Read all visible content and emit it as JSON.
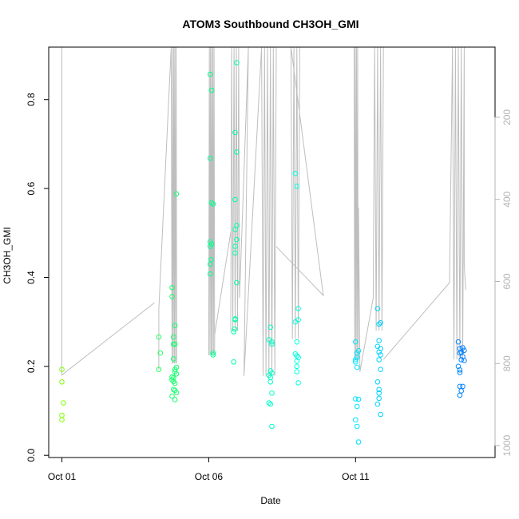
{
  "chart_data": {
    "type": "scatter",
    "title": "ATOM3 Southbound CH3OH_GMI",
    "xlabel": "Date",
    "ylabel": "CH3OH_GMI",
    "x_ticks": [
      {
        "day": 1,
        "label": "Oct 01"
      },
      {
        "day": 6,
        "label": "Oct 06"
      },
      {
        "day": 11,
        "label": "Oct 11"
      }
    ],
    "x_range": [
      0.55,
      15.75
    ],
    "y_ticks": [
      0.0,
      0.2,
      0.4,
      0.6,
      0.8
    ],
    "y_tick_labels": [
      "0.0",
      "0.2",
      "0.4",
      "0.6",
      "0.8"
    ],
    "ylim": [
      -0.005,
      0.918
    ],
    "right_axis": {
      "ticks": [
        200,
        400,
        600,
        800,
        1000
      ],
      "tick_labels": [
        "200",
        "400",
        "600",
        "800",
        "1000"
      ],
      "range_top_to_bottom": [
        29,
        1029
      ],
      "color": "#b3b3b3"
    },
    "grid": false,
    "legend": "none",
    "point_color_gradient": [
      "#80ff00",
      "#00ff80",
      "#00ffff",
      "#0080ff"
    ],
    "series": [
      {
        "points": [
          [
            1.0,
            0.193
          ],
          [
            1.0,
            0.165
          ],
          [
            1.05,
            0.118
          ],
          [
            1.0,
            0.09
          ],
          [
            1.0,
            0.08
          ],
          [
            4.3,
            0.266
          ],
          [
            4.35,
            0.23
          ],
          [
            4.3,
            0.193
          ],
          [
            4.75,
            0.377
          ],
          [
            4.75,
            0.357
          ],
          [
            4.85,
            0.292
          ],
          [
            4.8,
            0.266
          ],
          [
            4.8,
            0.25
          ],
          [
            4.85,
            0.25
          ],
          [
            4.8,
            0.217
          ],
          [
            4.9,
            0.198
          ],
          [
            4.85,
            0.193
          ],
          [
            4.85,
            0.188
          ],
          [
            4.9,
            0.183
          ],
          [
            4.75,
            0.176
          ],
          [
            4.8,
            0.174
          ],
          [
            4.75,
            0.17
          ],
          [
            4.8,
            0.166
          ],
          [
            4.85,
            0.162
          ],
          [
            4.8,
            0.148
          ],
          [
            4.85,
            0.146
          ],
          [
            4.9,
            0.141
          ],
          [
            4.75,
            0.133
          ],
          [
            4.85,
            0.125
          ],
          [
            4.9,
            0.588
          ],
          [
            6.05,
            0.857
          ],
          [
            6.1,
            0.821
          ],
          [
            6.05,
            0.668
          ],
          [
            6.1,
            0.568
          ],
          [
            6.15,
            0.565
          ],
          [
            6.05,
            0.48
          ],
          [
            6.1,
            0.475
          ],
          [
            6.05,
            0.47
          ],
          [
            6.08,
            0.44
          ],
          [
            6.05,
            0.43
          ],
          [
            6.05,
            0.408
          ],
          [
            6.15,
            0.23
          ],
          [
            6.15,
            0.226
          ],
          [
            6.95,
            0.883
          ],
          [
            6.9,
            0.726
          ],
          [
            6.95,
            0.682
          ],
          [
            6.9,
            0.575
          ],
          [
            6.95,
            0.517
          ],
          [
            6.9,
            0.508
          ],
          [
            6.95,
            0.485
          ],
          [
            6.9,
            0.47
          ],
          [
            6.9,
            0.455
          ],
          [
            6.95,
            0.388
          ],
          [
            6.9,
            0.307
          ],
          [
            6.9,
            0.305
          ],
          [
            6.88,
            0.284
          ],
          [
            6.85,
            0.278
          ],
          [
            6.85,
            0.21
          ],
          [
            8.1,
            0.288
          ],
          [
            8.05,
            0.26
          ],
          [
            8.15,
            0.255
          ],
          [
            8.15,
            0.25
          ],
          [
            8.1,
            0.19
          ],
          [
            8.15,
            0.185
          ],
          [
            8.05,
            0.18
          ],
          [
            8.1,
            0.175
          ],
          [
            8.1,
            0.165
          ],
          [
            8.15,
            0.14
          ],
          [
            8.05,
            0.118
          ],
          [
            8.1,
            0.115
          ],
          [
            8.15,
            0.065
          ],
          [
            8.95,
            0.634
          ],
          [
            9.0,
            0.605
          ],
          [
            9.05,
            0.33
          ],
          [
            9.05,
            0.305
          ],
          [
            8.95,
            0.3
          ],
          [
            9.0,
            0.255
          ],
          [
            8.95,
            0.228
          ],
          [
            9.0,
            0.224
          ],
          [
            9.05,
            0.22
          ],
          [
            9.0,
            0.212
          ],
          [
            9.0,
            0.2
          ],
          [
            9.0,
            0.188
          ],
          [
            9.05,
            0.163
          ],
          [
            11.0,
            0.255
          ],
          [
            11.1,
            0.235
          ],
          [
            11.05,
            0.23
          ],
          [
            11.05,
            0.22
          ],
          [
            11.0,
            0.215
          ],
          [
            11.0,
            0.21
          ],
          [
            11.05,
            0.198
          ],
          [
            11.0,
            0.127
          ],
          [
            11.1,
            0.126
          ],
          [
            11.05,
            0.11
          ],
          [
            11.0,
            0.08
          ],
          [
            11.05,
            0.065
          ],
          [
            11.1,
            0.03
          ],
          [
            11.75,
            0.33
          ],
          [
            11.85,
            0.298
          ],
          [
            11.8,
            0.295
          ],
          [
            11.8,
            0.258
          ],
          [
            11.75,
            0.245
          ],
          [
            11.85,
            0.24
          ],
          [
            11.8,
            0.232
          ],
          [
            11.85,
            0.226
          ],
          [
            11.8,
            0.215
          ],
          [
            11.85,
            0.193
          ],
          [
            11.75,
            0.165
          ],
          [
            11.8,
            0.148
          ],
          [
            11.8,
            0.14
          ],
          [
            11.8,
            0.128
          ],
          [
            11.75,
            0.115
          ],
          [
            11.85,
            0.092
          ],
          [
            14.5,
            0.255
          ],
          [
            14.65,
            0.242
          ],
          [
            14.55,
            0.24
          ],
          [
            14.6,
            0.232
          ],
          [
            14.55,
            0.23
          ],
          [
            14.7,
            0.236
          ],
          [
            14.65,
            0.222
          ],
          [
            14.5,
            0.2
          ],
          [
            14.55,
            0.192
          ],
          [
            14.6,
            0.215
          ],
          [
            14.7,
            0.213
          ],
          [
            14.55,
            0.186
          ],
          [
            14.55,
            0.155
          ],
          [
            14.65,
            0.155
          ],
          [
            14.6,
            0.145
          ],
          [
            14.55,
            0.135
          ]
        ]
      }
    ],
    "flight_track": {
      "color": "#bebebe",
      "y_axis": "right",
      "segments": [
        [
          [
            1.0,
            29
          ],
          [
            1.0,
            40
          ],
          [
            1.0,
            828
          ],
          [
            4.15,
            652
          ]
        ],
        [
          [
            4.3,
            815
          ],
          [
            4.3,
            667
          ],
          [
            4.72,
            29
          ],
          [
            4.75,
            800
          ],
          [
            4.77,
            29
          ],
          [
            4.79,
            800
          ],
          [
            4.81,
            29
          ],
          [
            4.83,
            800
          ],
          [
            4.85,
            29
          ],
          [
            4.87,
            800
          ],
          [
            4.89,
            29
          ],
          [
            4.91,
            800
          ]
        ],
        [
          [
            6.0,
            780
          ],
          [
            6.02,
            29
          ],
          [
            6.04,
            780
          ],
          [
            6.06,
            29
          ],
          [
            6.08,
            780
          ],
          [
            6.1,
            29
          ],
          [
            6.12,
            780
          ],
          [
            6.14,
            29
          ],
          [
            6.16,
            780
          ],
          [
            6.18,
            29
          ],
          [
            6.2,
            780
          ],
          [
            6.2,
            730
          ],
          [
            6.75,
            480
          ]
        ],
        [
          [
            6.75,
            720
          ],
          [
            6.78,
            29
          ],
          [
            6.82,
            720
          ],
          [
            6.86,
            29
          ],
          [
            6.9,
            720
          ],
          [
            6.94,
            29
          ],
          [
            6.98,
            720
          ],
          [
            7.02,
            29
          ],
          [
            7.05,
            640
          ],
          [
            7.35,
            29
          ],
          [
            7.2,
            830
          ],
          [
            7.8,
            29
          ]
        ],
        [
          [
            7.8,
            29
          ],
          [
            7.85,
            830
          ],
          [
            7.9,
            29
          ],
          [
            7.95,
            830
          ],
          [
            8.0,
            29
          ],
          [
            8.05,
            830
          ],
          [
            8.1,
            29
          ],
          [
            8.15,
            830
          ],
          [
            8.2,
            29
          ],
          [
            8.25,
            830
          ],
          [
            8.3,
            29
          ]
        ],
        [
          [
            8.3,
            515
          ],
          [
            9.9,
            634
          ],
          [
            8.8,
            29
          ],
          [
            8.85,
            740
          ],
          [
            8.9,
            29
          ],
          [
            8.95,
            740
          ],
          [
            9.0,
            29
          ],
          [
            9.05,
            740
          ],
          [
            9.1,
            29
          ]
        ],
        [
          [
            10.6,
            29
          ],
          [
            10.95,
            29
          ],
          [
            10.97,
            792
          ],
          [
            10.99,
            29
          ],
          [
            11.01,
            792
          ],
          [
            11.03,
            29
          ],
          [
            11.05,
            792
          ],
          [
            11.07,
            29
          ],
          [
            11.09,
            792
          ],
          [
            11.1,
            420
          ],
          [
            11.15,
            820
          ]
        ],
        [
          [
            11.15,
            820
          ],
          [
            11.6,
            640
          ],
          [
            11.65,
            29
          ],
          [
            11.7,
            720
          ],
          [
            11.75,
            29
          ],
          [
            11.8,
            720
          ],
          [
            11.85,
            29
          ],
          [
            11.9,
            720
          ],
          [
            11.95,
            29
          ]
        ],
        [
          [
            11.95,
            790
          ],
          [
            14.2,
            603
          ],
          [
            14.3,
            29
          ],
          [
            14.35,
            790
          ],
          [
            14.4,
            29
          ],
          [
            14.45,
            790
          ],
          [
            14.5,
            29
          ],
          [
            14.55,
            790
          ],
          [
            14.6,
            29
          ],
          [
            14.65,
            790
          ],
          [
            14.7,
            29
          ],
          [
            14.7,
            560
          ],
          [
            14.75,
            620
          ]
        ]
      ]
    }
  }
}
